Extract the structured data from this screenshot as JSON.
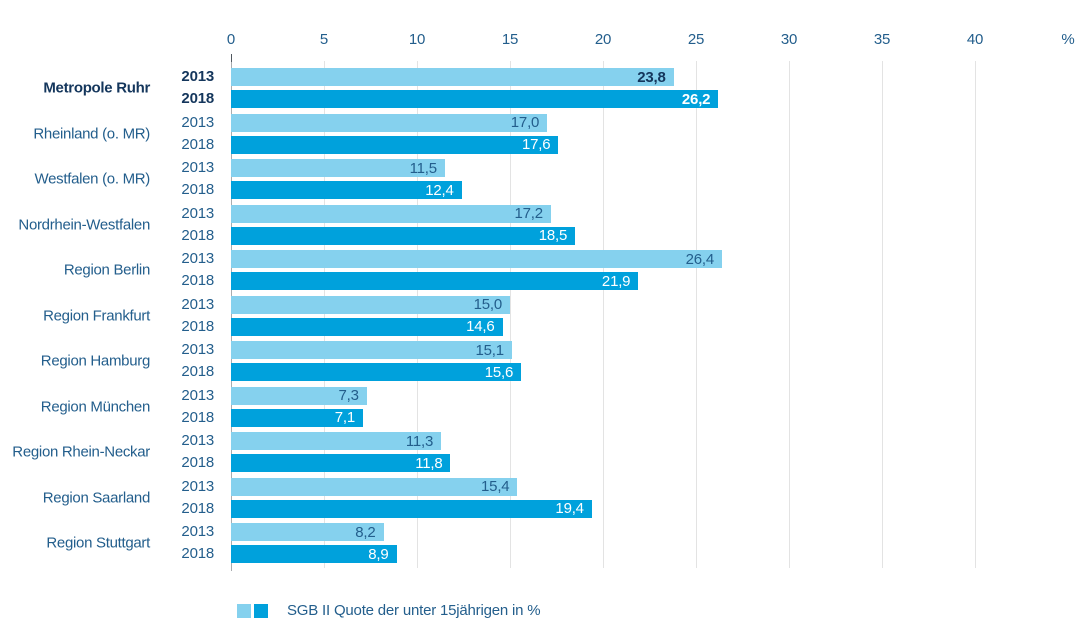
{
  "chart_data": {
    "type": "bar",
    "orientation": "horizontal",
    "title": "",
    "legend": {
      "label": "SGB II Quote der unter 15jährigen in %"
    },
    "series": [
      "2013",
      "2018"
    ],
    "axis": {
      "tick_values": [
        0,
        5,
        10,
        15,
        20,
        25,
        30,
        35,
        40
      ],
      "tick_labels": [
        "0",
        "5",
        "10",
        "15",
        "20",
        "25",
        "30",
        "35",
        "40"
      ],
      "unit_label": "%",
      "min": 0,
      "max": 45,
      "grid": true
    },
    "legend_position": "bottom",
    "groups": [
      {
        "region": "Metropole Ruhr",
        "emphasis": true,
        "values": [
          23.8,
          26.2
        ],
        "labels": [
          "23,8",
          "26,2"
        ]
      },
      {
        "region": "Rheinland (o. MR)",
        "emphasis": false,
        "values": [
          17.0,
          17.6
        ],
        "labels": [
          "17,0",
          "17,6"
        ]
      },
      {
        "region": "Westfalen (o. MR)",
        "emphasis": false,
        "values": [
          11.5,
          12.4
        ],
        "labels": [
          "11,5",
          "12,4"
        ]
      },
      {
        "region": "Nordrhein-Westfalen",
        "emphasis": false,
        "values": [
          17.2,
          18.5
        ],
        "labels": [
          "17,2",
          "18,5"
        ]
      },
      {
        "region": "Region Berlin",
        "emphasis": false,
        "values": [
          26.4,
          21.9
        ],
        "labels": [
          "26,4",
          "21,9"
        ]
      },
      {
        "region": "Region Frankfurt",
        "emphasis": false,
        "values": [
          15.0,
          14.6
        ],
        "labels": [
          "15,0",
          "14,6"
        ]
      },
      {
        "region": "Region Hamburg",
        "emphasis": false,
        "values": [
          15.1,
          15.6
        ],
        "labels": [
          "15,1",
          "15,6"
        ]
      },
      {
        "region": "Region München",
        "emphasis": false,
        "values": [
          7.3,
          7.1
        ],
        "labels": [
          "7,3",
          "7,1"
        ]
      },
      {
        "region": "Region Rhein-Neckar",
        "emphasis": false,
        "values": [
          11.3,
          11.8
        ],
        "labels": [
          "11,3",
          "11,8"
        ]
      },
      {
        "region": "Region Saarland",
        "emphasis": false,
        "values": [
          15.4,
          19.4
        ],
        "labels": [
          "15,4",
          "19,4"
        ]
      },
      {
        "region": "Region Stuttgart",
        "emphasis": false,
        "values": [
          8.2,
          8.9
        ],
        "labels": [
          "8,2",
          "8,9"
        ]
      }
    ],
    "colors": {
      "series_2013": "#85D1EE",
      "series_2018": "#00A1DC",
      "text_navy": "#235E8C",
      "text_navy_emphasis": "#14365C",
      "value_on_dark": "#FFFFFF",
      "gridline": "#E3E3E3",
      "zero_line": "#A9ACAF"
    }
  }
}
